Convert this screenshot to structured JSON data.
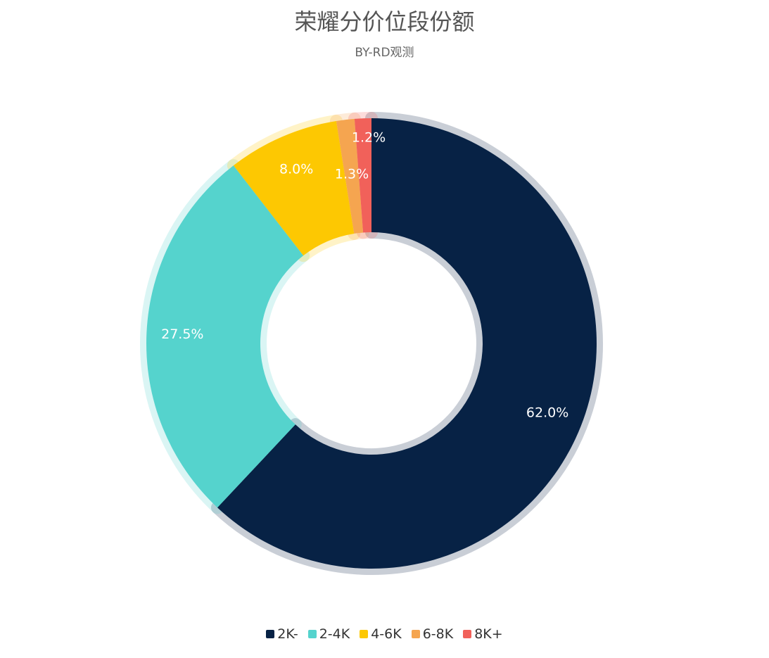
{
  "chart_data": {
    "type": "pie",
    "title": "荣耀分价位段份额",
    "subtitle": "BY-RD观测",
    "categories": [
      "2K-",
      "2-4K",
      "4-6K",
      "6-8K",
      "8K+"
    ],
    "values": [
      62.0,
      27.5,
      8.0,
      1.3,
      1.2
    ],
    "labels": [
      "62.0%",
      "27.5%",
      "8.0%",
      "1.3%",
      "1.2%"
    ],
    "colors": [
      "#072245",
      "#55d3cd",
      "#fdc802",
      "#f5a550",
      "#f1615a"
    ],
    "legend_position": "bottom",
    "donut": true
  }
}
